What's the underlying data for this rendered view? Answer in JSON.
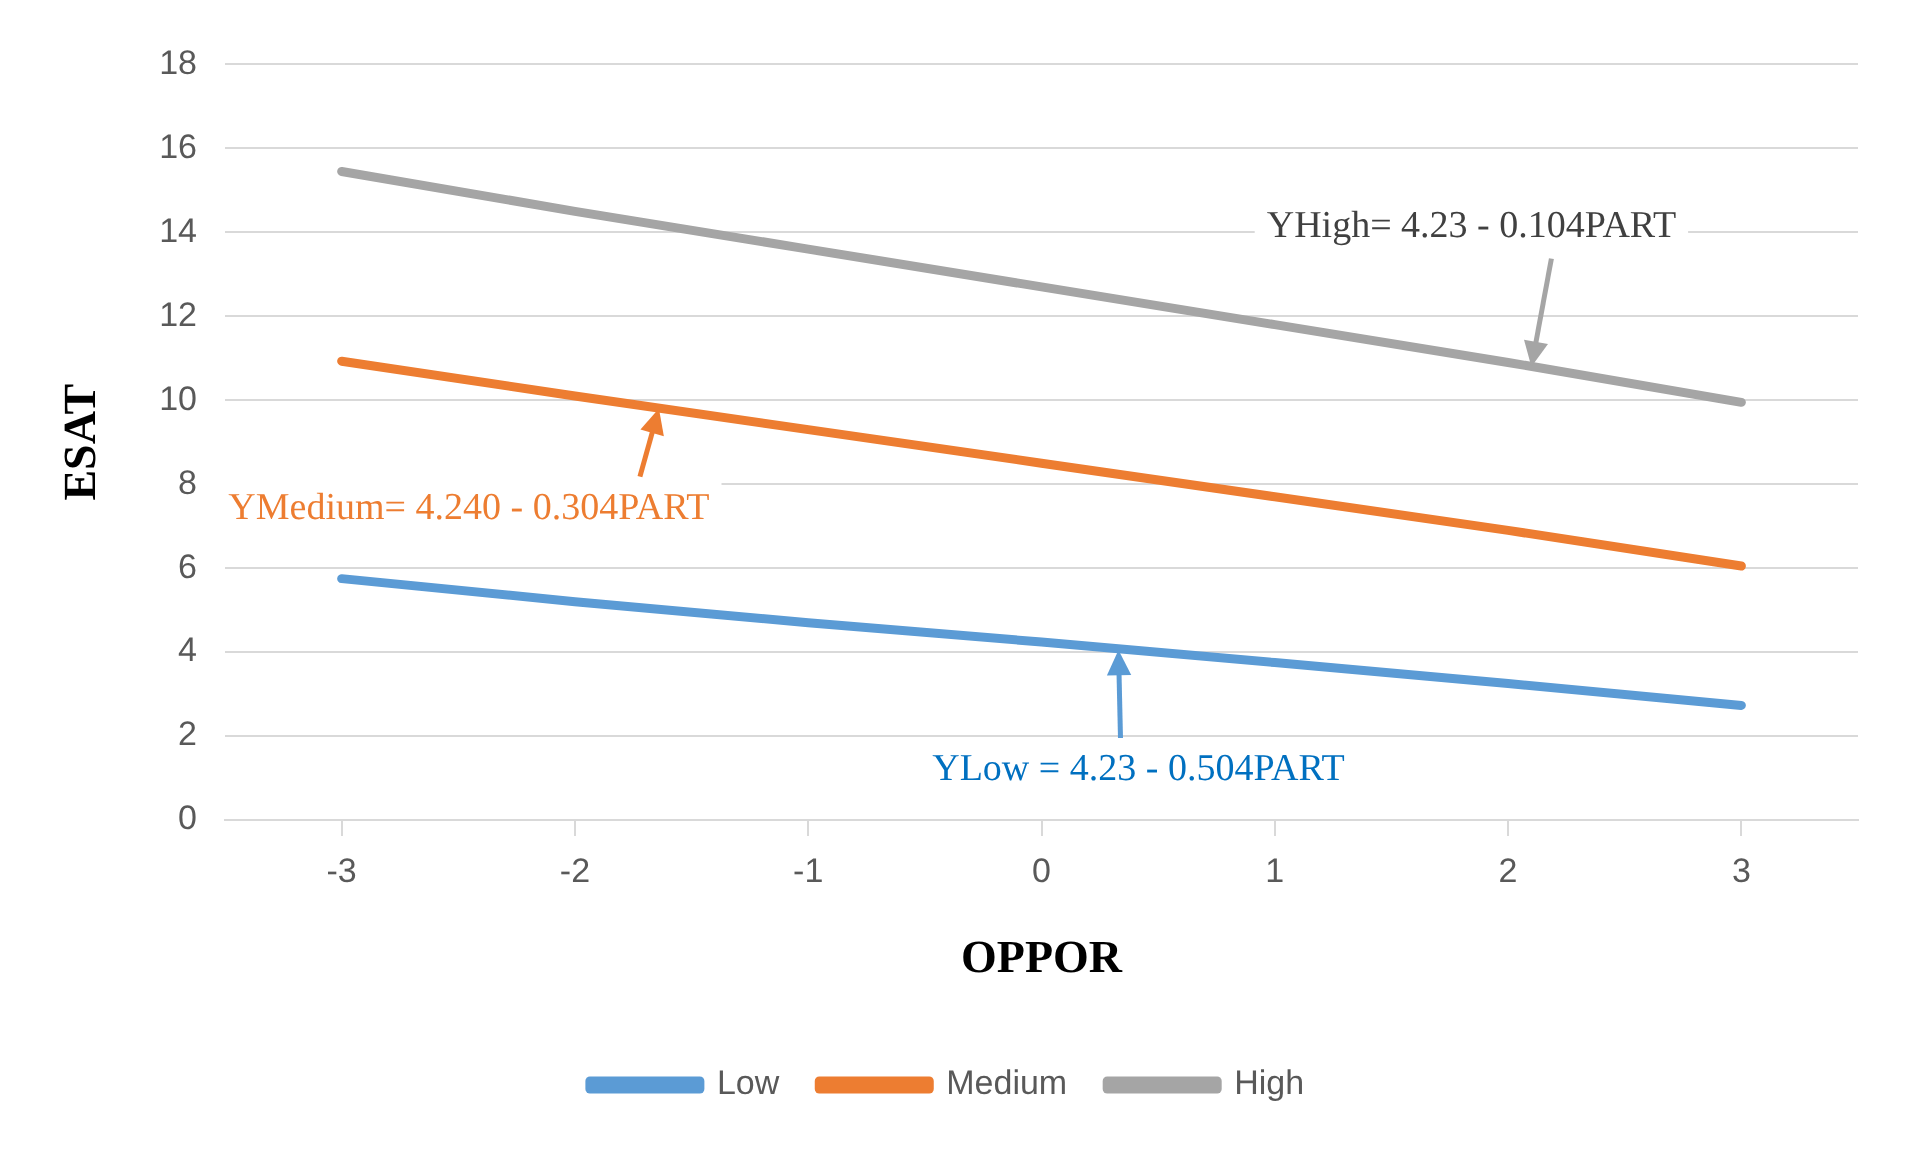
{
  "chart_data": {
    "type": "line",
    "xlabel": "OPPOR",
    "ylabel": "ESAT",
    "x": [
      -3,
      -2,
      -1,
      0,
      1,
      2,
      3
    ],
    "xlim": [
      -3.5,
      3.5
    ],
    "xticks": [
      -3,
      -2,
      -1,
      0,
      1,
      2,
      3
    ],
    "ylim": [
      0,
      18
    ],
    "yticks": [
      0,
      2,
      4,
      6,
      8,
      10,
      12,
      14,
      16,
      18
    ],
    "series": [
      {
        "name": "Low",
        "color": "#5b9bd5",
        "values": [
          5.75,
          5.2,
          4.7,
          4.24,
          3.75,
          3.25,
          2.73
        ]
      },
      {
        "name": "Medium",
        "color": "#ed7d31",
        "values": [
          10.93,
          10.1,
          9.3,
          8.5,
          7.7,
          6.9,
          6.05
        ]
      },
      {
        "name": "High",
        "color": "#a5a5a5",
        "values": [
          15.45,
          14.5,
          13.6,
          12.7,
          11.8,
          10.9,
          9.95
        ]
      }
    ],
    "annotations": [
      {
        "text": "YLow = 4.23 - 0.504PART",
        "x": 0.33,
        "y": 4.05
      },
      {
        "text": "YMedium= 4.240 - 0.304PART",
        "x": -1.64,
        "y": 9.8
      },
      {
        "text": "YHigh= 4.23 - 0.104PART",
        "x": 2.1,
        "y": 10.8
      }
    ],
    "grid": "y",
    "legend": "bottom",
    "marker": "none",
    "line_style": "solid"
  }
}
